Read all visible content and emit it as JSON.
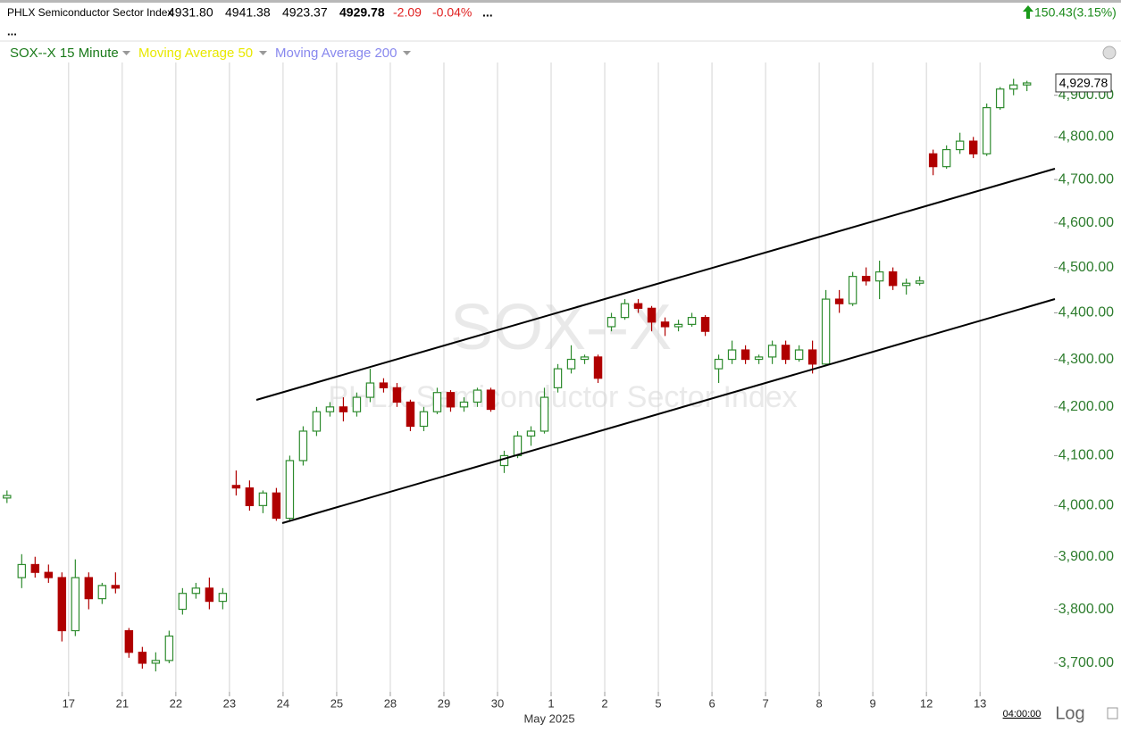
{
  "header": {
    "title": "PHLX Semiconductor Sector Index",
    "open": "4931.80",
    "high": "4941.38",
    "low": "4923.37",
    "last": "4929.78",
    "change": "-2.09",
    "change_pct": "-0.04%",
    "more": "...",
    "total_change": "150.43(3.15%)"
  },
  "legend": {
    "symbol": "SOX--X 15 Minute",
    "ma50": "Moving Average 50",
    "ma200": "Moving Average 200"
  },
  "watermark": {
    "symbol": "SOX--X",
    "name": "PHLX Semiconductor Sector Index"
  },
  "footer": {
    "time": "04:00:00",
    "scale": "Log"
  },
  "chart_data": {
    "type": "candlestick",
    "log_scale": true,
    "up_color": "#2e8b2e",
    "down_color": "#b00000",
    "grid": true,
    "x_label": "May 2025",
    "last_label": "4,929.78",
    "xlim": [
      -0.28,
      19.38
    ],
    "xticks": [
      {
        "value": 1,
        "label": "17"
      },
      {
        "value": 2,
        "label": "21"
      },
      {
        "value": 3,
        "label": "22"
      },
      {
        "value": 4,
        "label": "23"
      },
      {
        "value": 5,
        "label": "24"
      },
      {
        "value": 6,
        "label": "25"
      },
      {
        "value": 7,
        "label": "28"
      },
      {
        "value": 8,
        "label": "29"
      },
      {
        "value": 9,
        "label": "30"
      },
      {
        "value": 10,
        "label": "1"
      },
      {
        "value": 11,
        "label": "2"
      },
      {
        "value": 12,
        "label": "5"
      },
      {
        "value": 13,
        "label": "6"
      },
      {
        "value": 14,
        "label": "7"
      },
      {
        "value": 15,
        "label": "8"
      },
      {
        "value": 16,
        "label": "9"
      },
      {
        "value": 17,
        "label": "12"
      },
      {
        "value": 18,
        "label": "13"
      }
    ],
    "ylim": [
      3648,
      4980
    ],
    "yticks": [
      {
        "value": 3700,
        "label": "3,700.00"
      },
      {
        "value": 3800,
        "label": "3,800.00"
      },
      {
        "value": 3900,
        "label": "3,900.00"
      },
      {
        "value": 4000,
        "label": "4,000.00"
      },
      {
        "value": 4100,
        "label": "4,100.00"
      },
      {
        "value": 4200,
        "label": "4,200.00"
      },
      {
        "value": 4300,
        "label": "4,300.00"
      },
      {
        "value": 4400,
        "label": "4,400.00"
      },
      {
        "value": 4500,
        "label": "4,500.00"
      },
      {
        "value": 4600,
        "label": "4,600.00"
      },
      {
        "value": 4700,
        "label": "4,700.00"
      },
      {
        "value": 4800,
        "label": "4,800.00"
      },
      {
        "value": 4900,
        "label": "4,900.00"
      }
    ],
    "x": [
      -0.15,
      0.125,
      0.375,
      0.625,
      0.875,
      1.125,
      1.375,
      1.625,
      1.875,
      2.125,
      2.375,
      2.625,
      2.875,
      3.125,
      3.375,
      3.625,
      3.875,
      4.125,
      4.375,
      4.625,
      4.875,
      5.125,
      5.375,
      5.625,
      5.875,
      6.125,
      6.375,
      6.625,
      6.875,
      7.125,
      7.375,
      7.625,
      7.875,
      8.125,
      8.375,
      8.625,
      8.875,
      9.125,
      9.375,
      9.625,
      9.875,
      10.125,
      10.375,
      10.625,
      10.875,
      11.125,
      11.375,
      11.625,
      11.875,
      12.125,
      12.375,
      12.625,
      12.875,
      13.125,
      13.375,
      13.625,
      13.875,
      14.125,
      14.375,
      14.625,
      14.875,
      15.125,
      15.375,
      15.625,
      15.875,
      16.125,
      16.375,
      16.625,
      16.875,
      17.125,
      17.375,
      17.625,
      17.875,
      18.125,
      18.375,
      18.625,
      18.875
    ],
    "open": [
      4015,
      3860,
      3885,
      3870,
      3860,
      3760,
      3860,
      3820,
      3845,
      3760,
      3720,
      3700,
      3705,
      3800,
      3830,
      3840,
      3815,
      4040,
      4035,
      4000,
      4025,
      3975,
      4090,
      4150,
      4190,
      4200,
      4190,
      4220,
      4250,
      4240,
      4210,
      4160,
      4190,
      4230,
      4200,
      4210,
      4235,
      4080,
      4100,
      4140,
      4150,
      4240,
      4280,
      4300,
      4305,
      4370,
      4390,
      4420,
      4410,
      4380,
      4370,
      4375,
      4390,
      4280,
      4300,
      4320,
      4300,
      4305,
      4330,
      4300,
      4320,
      4290,
      4430,
      4420,
      4480,
      4470,
      4490,
      4460,
      4465,
      4760,
      4730,
      4770,
      4790,
      4760,
      4870,
      4915,
      4925
    ],
    "high": [
      4030,
      3905,
      3900,
      3885,
      3870,
      3895,
      3870,
      3850,
      3870,
      3765,
      3730,
      3720,
      3760,
      3840,
      3850,
      3860,
      3840,
      4070,
      4050,
      4030,
      4035,
      4100,
      4160,
      4200,
      4210,
      4220,
      4230,
      4280,
      4260,
      4250,
      4215,
      4200,
      4240,
      4235,
      4220,
      4240,
      4240,
      4110,
      4150,
      4160,
      4240,
      4290,
      4330,
      4310,
      4310,
      4400,
      4430,
      4430,
      4415,
      4390,
      4385,
      4400,
      4395,
      4310,
      4340,
      4330,
      4310,
      4340,
      4340,
      4330,
      4340,
      4450,
      4450,
      4490,
      4500,
      4515,
      4500,
      4475,
      4480,
      4770,
      4780,
      4810,
      4800,
      4880,
      4920,
      4940,
      4935
    ],
    "low": [
      4005,
      3840,
      3860,
      3850,
      3740,
      3750,
      3800,
      3810,
      3830,
      3710,
      3690,
      3685,
      3700,
      3790,
      3820,
      3800,
      3800,
      4020,
      3990,
      3985,
      3970,
      3970,
      4080,
      4140,
      4180,
      4170,
      4180,
      4210,
      4230,
      4200,
      4150,
      4150,
      4185,
      4190,
      4190,
      4200,
      4190,
      4065,
      4095,
      4120,
      4145,
      4230,
      4270,
      4290,
      4250,
      4360,
      4385,
      4400,
      4360,
      4350,
      4360,
      4370,
      4350,
      4250,
      4290,
      4290,
      4290,
      4290,
      4290,
      4295,
      4270,
      4285,
      4400,
      4415,
      4460,
      4430,
      4450,
      4440,
      4460,
      4710,
      4725,
      4760,
      4750,
      4755,
      4865,
      4900,
      4910
    ],
    "close": [
      4020,
      3885,
      3870,
      3860,
      3760,
      3860,
      3820,
      3845,
      3840,
      3720,
      3700,
      3705,
      3750,
      3830,
      3840,
      3815,
      3830,
      4035,
      4000,
      4025,
      3975,
      4090,
      4150,
      4190,
      4200,
      4190,
      4220,
      4250,
      4240,
      4210,
      4160,
      4190,
      4230,
      4200,
      4210,
      4235,
      4195,
      4100,
      4140,
      4150,
      4220,
      4280,
      4300,
      4305,
      4260,
      4390,
      4420,
      4410,
      4380,
      4370,
      4375,
      4390,
      4360,
      4300,
      4320,
      4300,
      4305,
      4330,
      4300,
      4320,
      4290,
      4430,
      4420,
      4480,
      4470,
      4490,
      4460,
      4465,
      4470,
      4730,
      4770,
      4790,
      4760,
      4870,
      4915,
      4925,
      4929.78
    ]
  }
}
